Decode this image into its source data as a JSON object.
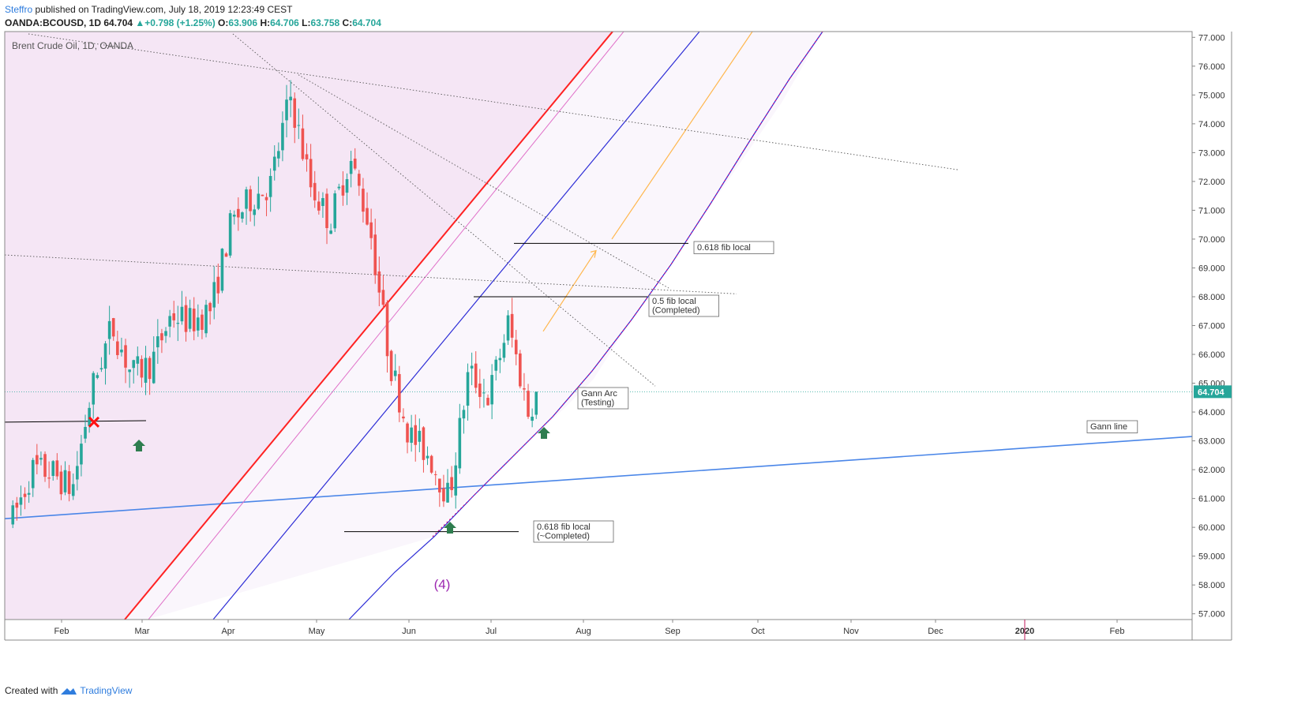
{
  "header": {
    "author": "Steffro",
    "published_text": "published on TradingView.com, July 18, 2019 12:23:49 CEST",
    "symbol": "OANDA:BCOUSD, 1D",
    "last": "64.704",
    "change": "+0.798 (+1.25%)",
    "open_label": "O:",
    "open": "63.906",
    "high_label": "H:",
    "high": "64.706",
    "low_label": "L:",
    "low": "63.758",
    "close_label": "C:",
    "close": "64.704"
  },
  "footer": {
    "created_with": "Created with",
    "brand": "TradingView"
  },
  "colors": {
    "up": "#26a69a",
    "down": "#ef5350",
    "pink_zone": "#f3e5f5",
    "gann_line": "#4a86e8",
    "red_line": "#ff2222",
    "blue_channel": "#2d2dd6",
    "orange": "#ffb74d"
  },
  "chart_data": {
    "type": "candlestick",
    "title": "Brent Crude Oil, 1D, OANDA",
    "ylim": [
      56.8,
      77.2
    ],
    "y_ticks": [
      "57.000",
      "58.000",
      "59.000",
      "60.000",
      "61.000",
      "62.000",
      "63.000",
      "64.000",
      "65.000",
      "66.000",
      "67.000",
      "68.000",
      "69.000",
      "70.000",
      "71.000",
      "72.000",
      "73.000",
      "74.000",
      "75.000",
      "76.000",
      "77.000"
    ],
    "x_ticks": [
      "Feb",
      "Mar",
      "Apr",
      "May",
      "Jun",
      "Jul",
      "Aug",
      "Sep",
      "Oct",
      "Nov",
      "Dec",
      "2020",
      "Feb"
    ],
    "last_price_label": "64.704",
    "last_price": 64.704,
    "close_path": [
      {
        "date": "2019-01-14",
        "close": 60.3
      },
      {
        "date": "2019-01-21",
        "close": 62.0
      },
      {
        "date": "2019-01-28",
        "close": 61.9
      },
      {
        "date": "2019-02-04",
        "close": 61.3
      },
      {
        "date": "2019-02-11",
        "close": 64.8
      },
      {
        "date": "2019-02-18",
        "close": 67.0
      },
      {
        "date": "2019-02-25",
        "close": 65.3
      },
      {
        "date": "2019-03-04",
        "close": 65.7
      },
      {
        "date": "2019-03-11",
        "close": 67.4
      },
      {
        "date": "2019-03-18",
        "close": 67.1
      },
      {
        "date": "2019-03-25",
        "close": 67.6
      },
      {
        "date": "2019-04-01",
        "close": 70.5
      },
      {
        "date": "2019-04-08",
        "close": 71.4
      },
      {
        "date": "2019-04-15",
        "close": 71.9
      },
      {
        "date": "2019-04-22",
        "close": 75.0
      },
      {
        "date": "2019-04-29",
        "close": 71.9
      },
      {
        "date": "2019-05-06",
        "close": 70.6
      },
      {
        "date": "2019-05-13",
        "close": 72.8
      },
      {
        "date": "2019-05-20",
        "close": 70.5
      },
      {
        "date": "2019-05-27",
        "close": 65.8
      },
      {
        "date": "2019-06-03",
        "close": 63.2
      },
      {
        "date": "2019-06-10",
        "close": 62.5
      },
      {
        "date": "2019-06-17",
        "close": 61.0
      },
      {
        "date": "2019-06-24",
        "close": 65.4
      },
      {
        "date": "2019-07-01",
        "close": 64.5
      },
      {
        "date": "2019-07-08",
        "close": 67.1
      },
      {
        "date": "2019-07-15",
        "close": 64.0
      },
      {
        "date": "2019-07-18",
        "close": 64.7
      }
    ],
    "annotations": [
      {
        "label": "0.618 fib local",
        "price": 69.85
      },
      {
        "label": "0.5 fib local",
        "label2": "(Completed)",
        "price": 68.0
      },
      {
        "label": "Gann Arc",
        "label2": "(Testing)",
        "price": 64.7
      },
      {
        "label": "Gann line",
        "price": 63.1
      },
      {
        "label": "0.618 fib local",
        "label2": "(~Completed)",
        "price": 59.85
      }
    ],
    "wave_label": "(4)"
  }
}
